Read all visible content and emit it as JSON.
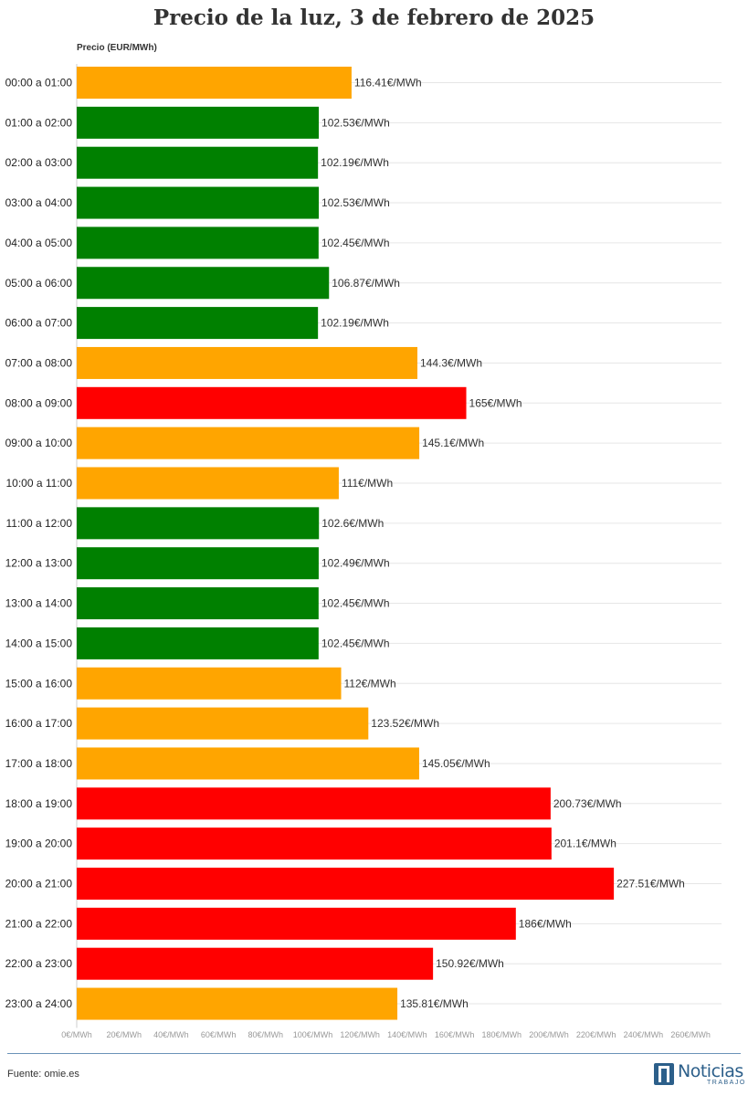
{
  "title": "Precio de la luz, 3 de febrero de 2025",
  "source": "Fuente: omie.es",
  "logo": {
    "name": "Noticias",
    "sub": "TRABAJO"
  },
  "colors": {
    "low": "#008000",
    "mid": "#ffa500",
    "high": "#ff0000",
    "grid": "#e6e6e6",
    "brand": "#2c5f8a"
  },
  "chart_data": {
    "type": "bar",
    "orientation": "horizontal",
    "ylabel": "Precio (EUR/MWh)",
    "xlim": [
      0,
      260
    ],
    "grid": true,
    "xticks": [
      "0€/MWh",
      "20€/MWh",
      "40€/MWh",
      "60€/MWh",
      "80€/MWh",
      "100€/MWh",
      "120€/MWh",
      "140€/MWh",
      "160€/MWh",
      "180€/MWh",
      "200€/MWh",
      "220€/MWh",
      "240€/MWh",
      "260€/MWh"
    ],
    "categories": [
      "00:00 a 01:00",
      "01:00 a 02:00",
      "02:00 a 03:00",
      "03:00 a 04:00",
      "04:00 a 05:00",
      "05:00 a 06:00",
      "06:00 a 07:00",
      "07:00 a 08:00",
      "08:00 a 09:00",
      "09:00 a 10:00",
      "10:00 a 11:00",
      "11:00 a 12:00",
      "12:00 a 13:00",
      "13:00 a 14:00",
      "14:00 a 15:00",
      "15:00 a 16:00",
      "16:00 a 17:00",
      "17:00 a 18:00",
      "18:00 a 19:00",
      "19:00 a 20:00",
      "20:00 a 21:00",
      "21:00 a 22:00",
      "22:00 a 23:00",
      "23:00 a 24:00"
    ],
    "values": [
      116.41,
      102.53,
      102.19,
      102.53,
      102.45,
      106.87,
      102.19,
      144.3,
      165,
      145.1,
      111,
      102.6,
      102.49,
      102.45,
      102.45,
      112,
      123.52,
      145.05,
      200.73,
      201.1,
      227.51,
      186,
      150.92,
      135.81
    ],
    "labels": [
      "116.41€/MWh",
      "102.53€/MWh",
      "102.19€/MWh",
      "102.53€/MWh",
      "102.45€/MWh",
      "106.87€/MWh",
      "102.19€/MWh",
      "144.3€/MWh",
      "165€/MWh",
      "145.1€/MWh",
      "111€/MWh",
      "102.6€/MWh",
      "102.49€/MWh",
      "102.45€/MWh",
      "102.45€/MWh",
      "112€/MWh",
      "123.52€/MWh",
      "145.05€/MWh",
      "200.73€/MWh",
      "201.1€/MWh",
      "227.51€/MWh",
      "186€/MWh",
      "150.92€/MWh",
      "135.81€/MWh"
    ],
    "bar_colors": [
      "#ffa500",
      "#008000",
      "#008000",
      "#008000",
      "#008000",
      "#008000",
      "#008000",
      "#ffa500",
      "#ff0000",
      "#ffa500",
      "#ffa500",
      "#008000",
      "#008000",
      "#008000",
      "#008000",
      "#ffa500",
      "#ffa500",
      "#ffa500",
      "#ff0000",
      "#ff0000",
      "#ff0000",
      "#ff0000",
      "#ff0000",
      "#ffa500"
    ]
  }
}
